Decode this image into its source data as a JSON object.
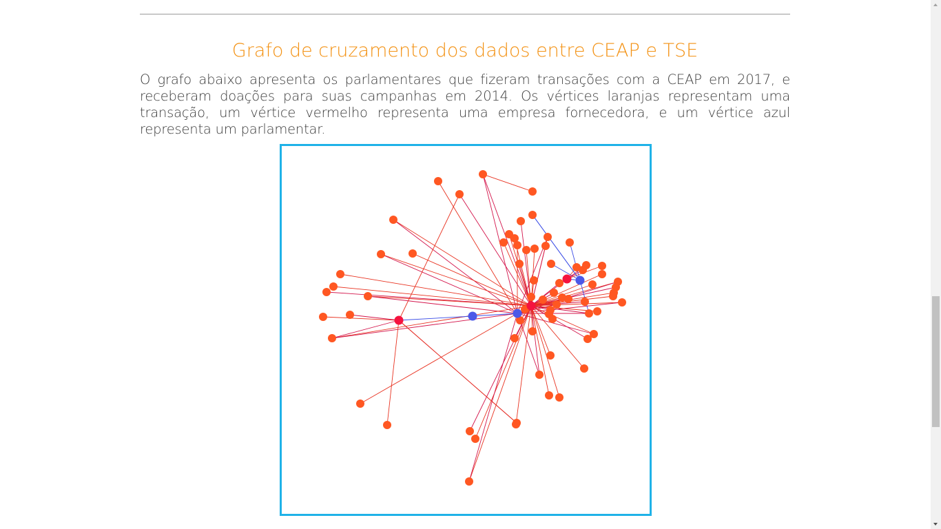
{
  "content": {
    "title": "Grafo de cruzamento dos dados entre CEAP e TSE",
    "paragraph": "O grafo abaixo apresenta os parlamentares que fizeram transações com a CEAP em 2017, e receberam doações para suas campanhas em 2014. Os vértices laranjas representam uma transação, um vértice vermelho representa uma empresa fornecedora, e um vértice azul representa um parlamentar.",
    "truncated_next_text": "... (...) ..."
  },
  "graph": {
    "colors": {
      "transaction": "#ff5722",
      "supplier": "#f5133f",
      "parliamentarian": "#4c58e8",
      "edge_red": "#e8311f",
      "edge_crimson": "#d3134a",
      "edge_blue": "#3a4ce6",
      "frame": "#1fb2e8"
    },
    "legend_meaning": {
      "transaction": "laranja",
      "supplier": "vermelho",
      "parliamentarian": "azul"
    }
  },
  "colors": {
    "title": "#f39112",
    "text": "#3a3a3a",
    "divider": "#9a9a9a"
  }
}
